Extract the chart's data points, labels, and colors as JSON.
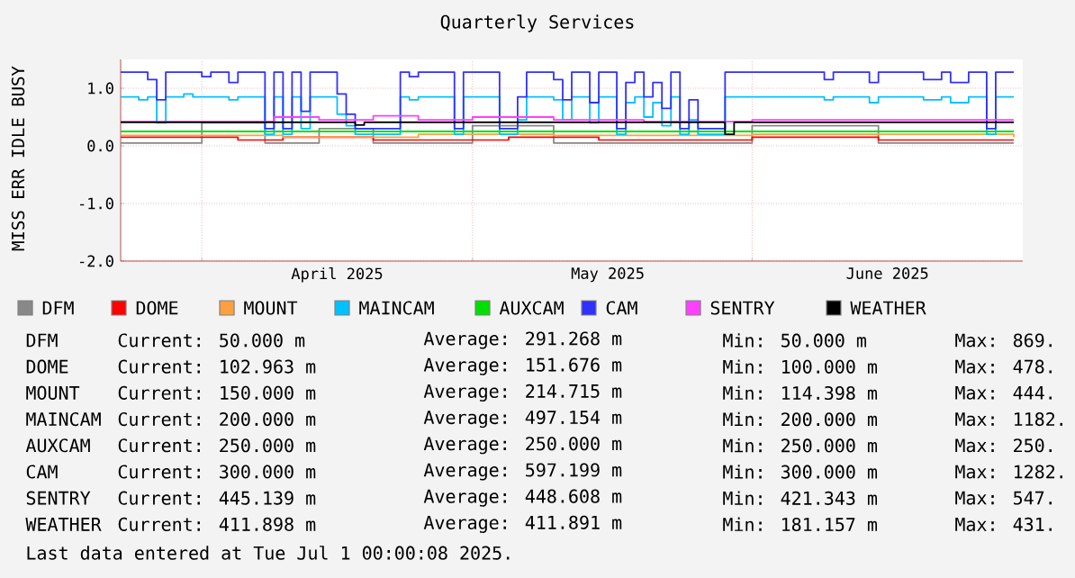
{
  "chart_data": {
    "type": "step",
    "title": "Quarterly Services",
    "ylabel": "MISS ERR IDLE BUSY",
    "xlim": [
      "2025-03-23",
      "2025-07-01"
    ],
    "xticks": [
      {
        "value": "2025-04-01",
        "label": null
      },
      {
        "value": "2025-04-16",
        "label": "April 2025"
      },
      {
        "value": "2025-05-01",
        "label": null
      },
      {
        "value": "2025-05-16",
        "label": "May 2025"
      },
      {
        "value": "2025-06-01",
        "label": null
      },
      {
        "value": "2025-06-16",
        "label": "June 2025"
      }
    ],
    "ylim": [
      -2,
      1.5
    ],
    "yticks": [
      {
        "value": -2,
        "label": "-2.0"
      },
      {
        "value": -1,
        "label": "-1.0"
      },
      {
        "value": 0,
        "label": "0.0"
      },
      {
        "value": 1,
        "label": "1.0"
      }
    ],
    "grid": true,
    "legend": "bottom",
    "x": [
      "2025-03-23",
      "2025-03-24",
      "2025-03-25",
      "2025-03-26",
      "2025-03-27",
      "2025-03-28",
      "2025-03-29",
      "2025-03-30",
      "2025-03-31",
      "2025-04-01",
      "2025-04-02",
      "2025-04-03",
      "2025-04-04",
      "2025-04-05",
      "2025-04-06",
      "2025-04-07",
      "2025-04-08",
      "2025-04-09",
      "2025-04-10",
      "2025-04-11",
      "2025-04-12",
      "2025-04-13",
      "2025-04-14",
      "2025-04-15",
      "2025-04-16",
      "2025-04-17",
      "2025-04-18",
      "2025-04-19",
      "2025-04-20",
      "2025-04-21",
      "2025-04-22",
      "2025-04-23",
      "2025-04-24",
      "2025-04-25",
      "2025-04-26",
      "2025-04-27",
      "2025-04-28",
      "2025-04-29",
      "2025-04-30",
      "2025-05-01",
      "2025-05-02",
      "2025-05-03",
      "2025-05-04",
      "2025-05-05",
      "2025-05-06",
      "2025-05-07",
      "2025-05-08",
      "2025-05-09",
      "2025-05-10",
      "2025-05-11",
      "2025-05-12",
      "2025-05-13",
      "2025-05-14",
      "2025-05-15",
      "2025-05-16",
      "2025-05-17",
      "2025-05-18",
      "2025-05-19",
      "2025-05-20",
      "2025-05-21",
      "2025-05-22",
      "2025-05-23",
      "2025-05-24",
      "2025-05-25",
      "2025-05-26",
      "2025-05-27",
      "2025-05-28",
      "2025-05-29",
      "2025-05-30",
      "2025-05-31",
      "2025-06-01",
      "2025-06-02",
      "2025-06-03",
      "2025-06-04",
      "2025-06-05",
      "2025-06-06",
      "2025-06-07",
      "2025-06-08",
      "2025-06-09",
      "2025-06-10",
      "2025-06-11",
      "2025-06-12",
      "2025-06-13",
      "2025-06-14",
      "2025-06-15",
      "2025-06-16",
      "2025-06-17",
      "2025-06-18",
      "2025-06-19",
      "2025-06-20",
      "2025-06-21",
      "2025-06-22",
      "2025-06-23",
      "2025-06-24",
      "2025-06-25",
      "2025-06-26",
      "2025-06-27",
      "2025-06-28",
      "2025-06-29",
      "2025-06-30"
    ],
    "series": [
      {
        "name": "DFM",
        "color": "#888888",
        "x": [
          "2025-03-23",
          "2025-04-01",
          "2025-04-08",
          "2025-04-14",
          "2025-04-20",
          "2025-05-01",
          "2025-05-10",
          "2025-06-01",
          "2025-06-15",
          "2025-06-30"
        ],
        "values": [
          0.05,
          0.4,
          0.05,
          0.3,
          0.05,
          0.35,
          0.05,
          0.35,
          0.05,
          0.05
        ]
      },
      {
        "name": "DOME",
        "color": "#ff0000",
        "x": [
          "2025-03-23",
          "2025-04-05",
          "2025-04-10",
          "2025-04-20",
          "2025-05-05",
          "2025-05-15",
          "2025-06-01",
          "2025-06-15",
          "2025-06-30"
        ],
        "values": [
          0.15,
          0.1,
          0.15,
          0.1,
          0.15,
          0.1,
          0.15,
          0.1,
          0.1
        ]
      },
      {
        "name": "MOUNT",
        "color": "#ffa040",
        "x": [
          "2025-03-23",
          "2025-04-10",
          "2025-04-25",
          "2025-05-10",
          "2025-06-01",
          "2025-06-30"
        ],
        "values": [
          0.18,
          0.15,
          0.2,
          0.18,
          0.2,
          0.15
        ]
      },
      {
        "name": "MAINCAM",
        "color": "#00c0ff",
        "values": [
          0.85,
          0.85,
          0.8,
          0.85,
          0.4,
          0.85,
          0.85,
          0.9,
          0.85,
          0.85,
          0.85,
          0.85,
          0.8,
          0.85,
          0.85,
          0.85,
          0.2,
          0.85,
          0.2,
          0.85,
          0.3,
          0.85,
          0.85,
          0.85,
          0.55,
          0.35,
          0.2,
          0.2,
          0.2,
          0.2,
          0.2,
          0.85,
          0.8,
          0.85,
          0.85,
          0.85,
          0.85,
          0.2,
          0.85,
          0.85,
          0.85,
          0.85,
          0.2,
          0.2,
          0.45,
          0.85,
          0.85,
          0.85,
          0.8,
          0.45,
          0.85,
          0.85,
          0.4,
          0.85,
          0.85,
          0.2,
          0.75,
          0.85,
          0.5,
          0.75,
          0.35,
          0.85,
          0.2,
          0.45,
          0.2,
          0.2,
          0.2,
          0.85,
          0.85,
          0.85,
          0.85,
          0.85,
          0.85,
          0.85,
          0.85,
          0.85,
          0.85,
          0.85,
          0.8,
          0.85,
          0.85,
          0.85,
          0.85,
          0.75,
          0.85,
          0.85,
          0.85,
          0.85,
          0.85,
          0.8,
          0.8,
          0.85,
          0.75,
          0.75,
          0.85,
          0.85,
          0.2,
          0.85,
          0.85,
          0.85
        ]
      },
      {
        "name": "AUXCAM",
        "color": "#00e000",
        "x": [
          "2025-03-23",
          "2025-06-30"
        ],
        "values": [
          0.25,
          0.25
        ]
      },
      {
        "name": "CAM",
        "color": "#3030ff",
        "values": [
          1.28,
          1.28,
          1.28,
          1.15,
          0.8,
          1.28,
          1.28,
          1.28,
          1.28,
          1.2,
          1.28,
          1.28,
          1.1,
          1.28,
          1.28,
          1.28,
          0.3,
          1.28,
          0.3,
          1.28,
          0.6,
          1.28,
          1.28,
          1.28,
          0.9,
          0.55,
          0.3,
          0.3,
          0.3,
          0.3,
          0.3,
          1.28,
          1.2,
          1.28,
          1.28,
          1.28,
          1.28,
          0.3,
          1.28,
          1.28,
          1.28,
          1.28,
          0.3,
          0.3,
          0.85,
          1.28,
          1.28,
          1.28,
          1.15,
          0.8,
          1.28,
          1.28,
          0.75,
          1.28,
          1.28,
          0.3,
          1.1,
          1.28,
          0.85,
          1.1,
          0.65,
          1.28,
          0.3,
          0.8,
          0.3,
          0.3,
          0.3,
          1.28,
          1.28,
          1.28,
          1.28,
          1.28,
          1.28,
          1.28,
          1.28,
          1.28,
          1.28,
          1.28,
          1.15,
          1.28,
          1.28,
          1.28,
          1.28,
          1.1,
          1.28,
          1.28,
          1.28,
          1.28,
          1.28,
          1.15,
          1.15,
          1.28,
          1.1,
          1.1,
          1.28,
          1.28,
          0.3,
          1.28,
          1.28,
          1.28
        ]
      },
      {
        "name": "SENTRY",
        "color": "#ff40ff",
        "x": [
          "2025-03-23",
          "2025-04-09",
          "2025-04-14",
          "2025-04-20",
          "2025-04-25",
          "2025-05-01",
          "2025-05-10",
          "2025-05-20",
          "2025-06-01",
          "2025-06-30"
        ],
        "values": [
          0.42,
          0.5,
          0.45,
          0.52,
          0.45,
          0.5,
          0.45,
          0.42,
          0.45,
          0.45
        ]
      },
      {
        "name": "WEATHER",
        "color": "#000000",
        "x": [
          "2025-03-23",
          "2025-04-18",
          "2025-04-19",
          "2025-05-29",
          "2025-05-30",
          "2025-06-30"
        ],
        "values": [
          0.41,
          0.36,
          0.41,
          0.2,
          0.41,
          0.41
        ]
      }
    ],
    "annotations": [
      "DFM",
      "Current: 50.000 m",
      "Average: 291.268 m",
      "Min: 50.000 m",
      "Max: 869.",
      "DOME",
      "Current: 102.963 m",
      "Average: 151.676 m",
      "Min: 100.000 m",
      "Max: 478.",
      "MOUNT",
      "Current: 150.000 m",
      "Average: 214.715 m",
      "Min: 114.398 m",
      "Max: 444.",
      "MAINCAM",
      "Current: 200.000 m",
      "Average: 497.154 m",
      "Min: 200.000 m",
      "Max: 1182.",
      "AUXCAM",
      "Current: 250.000 m",
      "Average: 250.000 m",
      "Min: 250.000 m",
      "Max: 250.",
      "CAM",
      "Current: 300.000 m",
      "Average: 597.199 m",
      "Min: 300.000 m",
      "Max: 1282.",
      "SENTRY",
      "Current: 445.139 m",
      "Average: 448.608 m",
      "Min: 421.343 m",
      "Max: 547.",
      "WEATHER",
      "Current: 411.898 m",
      "Average: 411.891 m",
      "Min: 181.157 m",
      "Max: 431.",
      "Last data entered at Tue Jul  1 00:00:08 2025."
    ]
  }
}
